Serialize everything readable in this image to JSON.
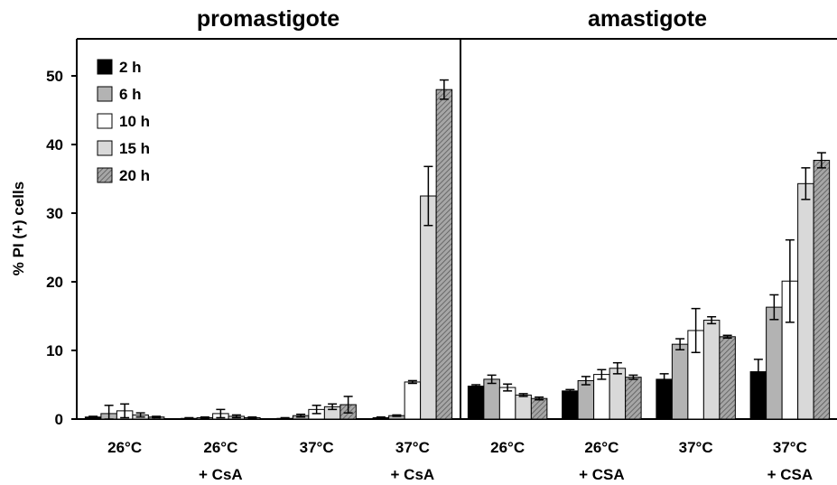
{
  "chart_data": {
    "type": "bar",
    "ylabel": "% PI (+) cells",
    "ylim": [
      0,
      50
    ],
    "yticks": [
      "0",
      "10",
      "20",
      "30",
      "40",
      "50"
    ],
    "legend_position": "top-left",
    "series": [
      {
        "name": "2 h",
        "color": "#000000",
        "pattern": "solid"
      },
      {
        "name": "6 h",
        "color": "#b3b3b3",
        "pattern": "solid"
      },
      {
        "name": "10 h",
        "color": "#ffffff",
        "pattern": "solid"
      },
      {
        "name": "15 h",
        "color": "#d9d9d9",
        "pattern": "solid"
      },
      {
        "name": "20 h",
        "color": "#8c8c8c",
        "pattern": "hatched"
      }
    ],
    "panels": [
      {
        "title": "promastigote",
        "categories": [
          {
            "line1": "26°C",
            "line2": "",
            "values": [
              0.3,
              0.8,
              1.2,
              0.6,
              0.3
            ],
            "errors": [
              0.1,
              1.2,
              1.0,
              0.3,
              0.1
            ]
          },
          {
            "line1": "26°C",
            "line2": "+ CsA",
            "values": [
              0.1,
              0.2,
              0.8,
              0.4,
              0.2
            ],
            "errors": [
              0.1,
              0.1,
              0.6,
              0.2,
              0.1
            ]
          },
          {
            "line1": "37°C",
            "line2": "",
            "values": [
              0.1,
              0.5,
              1.4,
              1.8,
              2.1
            ],
            "errors": [
              0.1,
              0.2,
              0.6,
              0.4,
              1.2
            ]
          },
          {
            "line1": "37°C",
            "line2": "+ CsA",
            "values": [
              0.2,
              0.5,
              5.4,
              32.5,
              48.0
            ],
            "errors": [
              0.1,
              0.1,
              0.2,
              4.3,
              1.4
            ]
          }
        ]
      },
      {
        "title": "amastigote",
        "categories": [
          {
            "line1": "26°C",
            "line2": "",
            "values": [
              4.8,
              5.8,
              4.6,
              3.5,
              3.0
            ],
            "errors": [
              0.2,
              0.6,
              0.5,
              0.2,
              0.2
            ]
          },
          {
            "line1": "26°C",
            "line2": "+ CSA",
            "values": [
              4.1,
              5.6,
              6.5,
              7.4,
              6.1
            ],
            "errors": [
              0.2,
              0.6,
              0.7,
              0.8,
              0.3
            ]
          },
          {
            "line1": "37°C",
            "line2": "",
            "values": [
              5.8,
              10.9,
              12.9,
              14.4,
              12.0
            ],
            "errors": [
              0.8,
              0.8,
              3.2,
              0.5,
              0.2
            ]
          },
          {
            "line1": "37°C",
            "line2": "+ CSA",
            "values": [
              6.9,
              16.3,
              20.1,
              34.3,
              37.7
            ],
            "errors": [
              1.8,
              1.8,
              6.0,
              2.3,
              1.1
            ]
          }
        ]
      }
    ]
  }
}
